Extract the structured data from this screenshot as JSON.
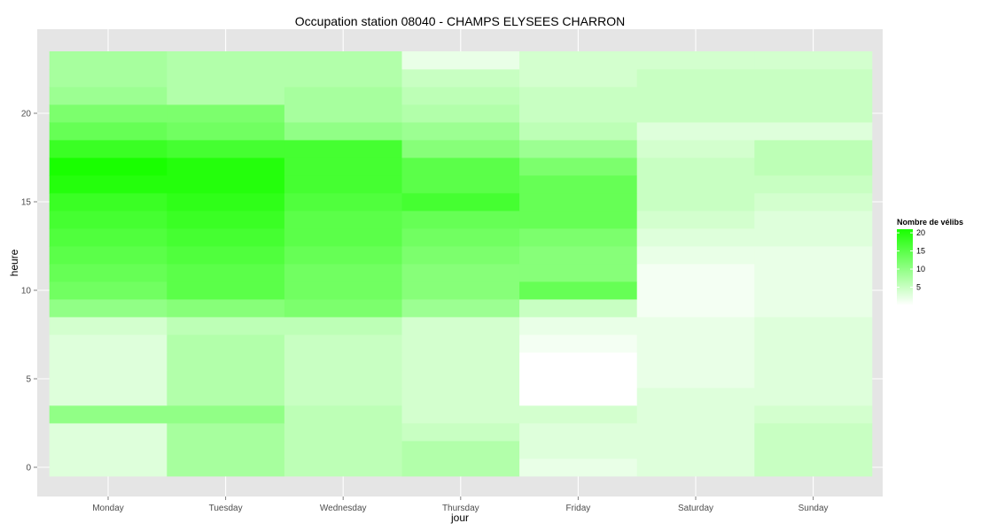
{
  "chart_data": {
    "type": "heatmap",
    "title": "Occupation station 08040 - CHAMPS ELYSEES CHARRON",
    "xlabel": "jour",
    "ylabel": "heure",
    "x_categories": [
      "Monday",
      "Tuesday",
      "Wednesday",
      "Thursday",
      "Friday",
      "Saturday",
      "Sunday"
    ],
    "y_values": [
      0,
      1,
      2,
      3,
      4,
      5,
      6,
      7,
      8,
      9,
      10,
      11,
      12,
      13,
      14,
      15,
      16,
      17,
      18,
      19,
      20,
      21,
      22,
      23
    ],
    "y_ticks": [
      0,
      5,
      10,
      15,
      20
    ],
    "ylim": [
      -0.5,
      23.5
    ],
    "z": [
      [
        3,
        8,
        6,
        7,
        2,
        3,
        5
      ],
      [
        3,
        8,
        6,
        7,
        3,
        3,
        5
      ],
      [
        3,
        8,
        6,
        5,
        3,
        3,
        5
      ],
      [
        10,
        10,
        6,
        4,
        4,
        3,
        4
      ],
      [
        3,
        7,
        5,
        4,
        0,
        3,
        3
      ],
      [
        3,
        7,
        5,
        4,
        0,
        2,
        3
      ],
      [
        3,
        7,
        5,
        4,
        0,
        2,
        3
      ],
      [
        3,
        7,
        5,
        4,
        1,
        2,
        3
      ],
      [
        4,
        6,
        6,
        4,
        2,
        2,
        3
      ],
      [
        10,
        11,
        12,
        9,
        5,
        1,
        2
      ],
      [
        13,
        15,
        13,
        11,
        14,
        1,
        2
      ],
      [
        14,
        15,
        13,
        11,
        11,
        1,
        2
      ],
      [
        15,
        16,
        14,
        12,
        11,
        2,
        2
      ],
      [
        16,
        17,
        15,
        13,
        12,
        3,
        3
      ],
      [
        17,
        18,
        15,
        14,
        14,
        4,
        3
      ],
      [
        18,
        19,
        16,
        17,
        14,
        5,
        4
      ],
      [
        20,
        20,
        17,
        15,
        14,
        5,
        5
      ],
      [
        21,
        20,
        17,
        15,
        12,
        5,
        6
      ],
      [
        18,
        17,
        17,
        11,
        9,
        4,
        6
      ],
      [
        14,
        13,
        10,
        9,
        6,
        3,
        3
      ],
      [
        12,
        12,
        8,
        7,
        5,
        5,
        5
      ],
      [
        9,
        7,
        8,
        6,
        5,
        5,
        5
      ],
      [
        8,
        7,
        7,
        5,
        4,
        5,
        5
      ],
      [
        8,
        7,
        7,
        2,
        4,
        4,
        4
      ]
    ],
    "value_range": [
      0,
      21
    ],
    "legend": {
      "title": "Nombre de vélibs",
      "ticks": [
        5,
        10,
        15,
        20
      ],
      "placement": "right"
    },
    "colors": {
      "low": "#ffffff",
      "high": "#19ff00",
      "panel": "#e5e5e5",
      "grid": "#ffffff"
    },
    "grid": true
  }
}
